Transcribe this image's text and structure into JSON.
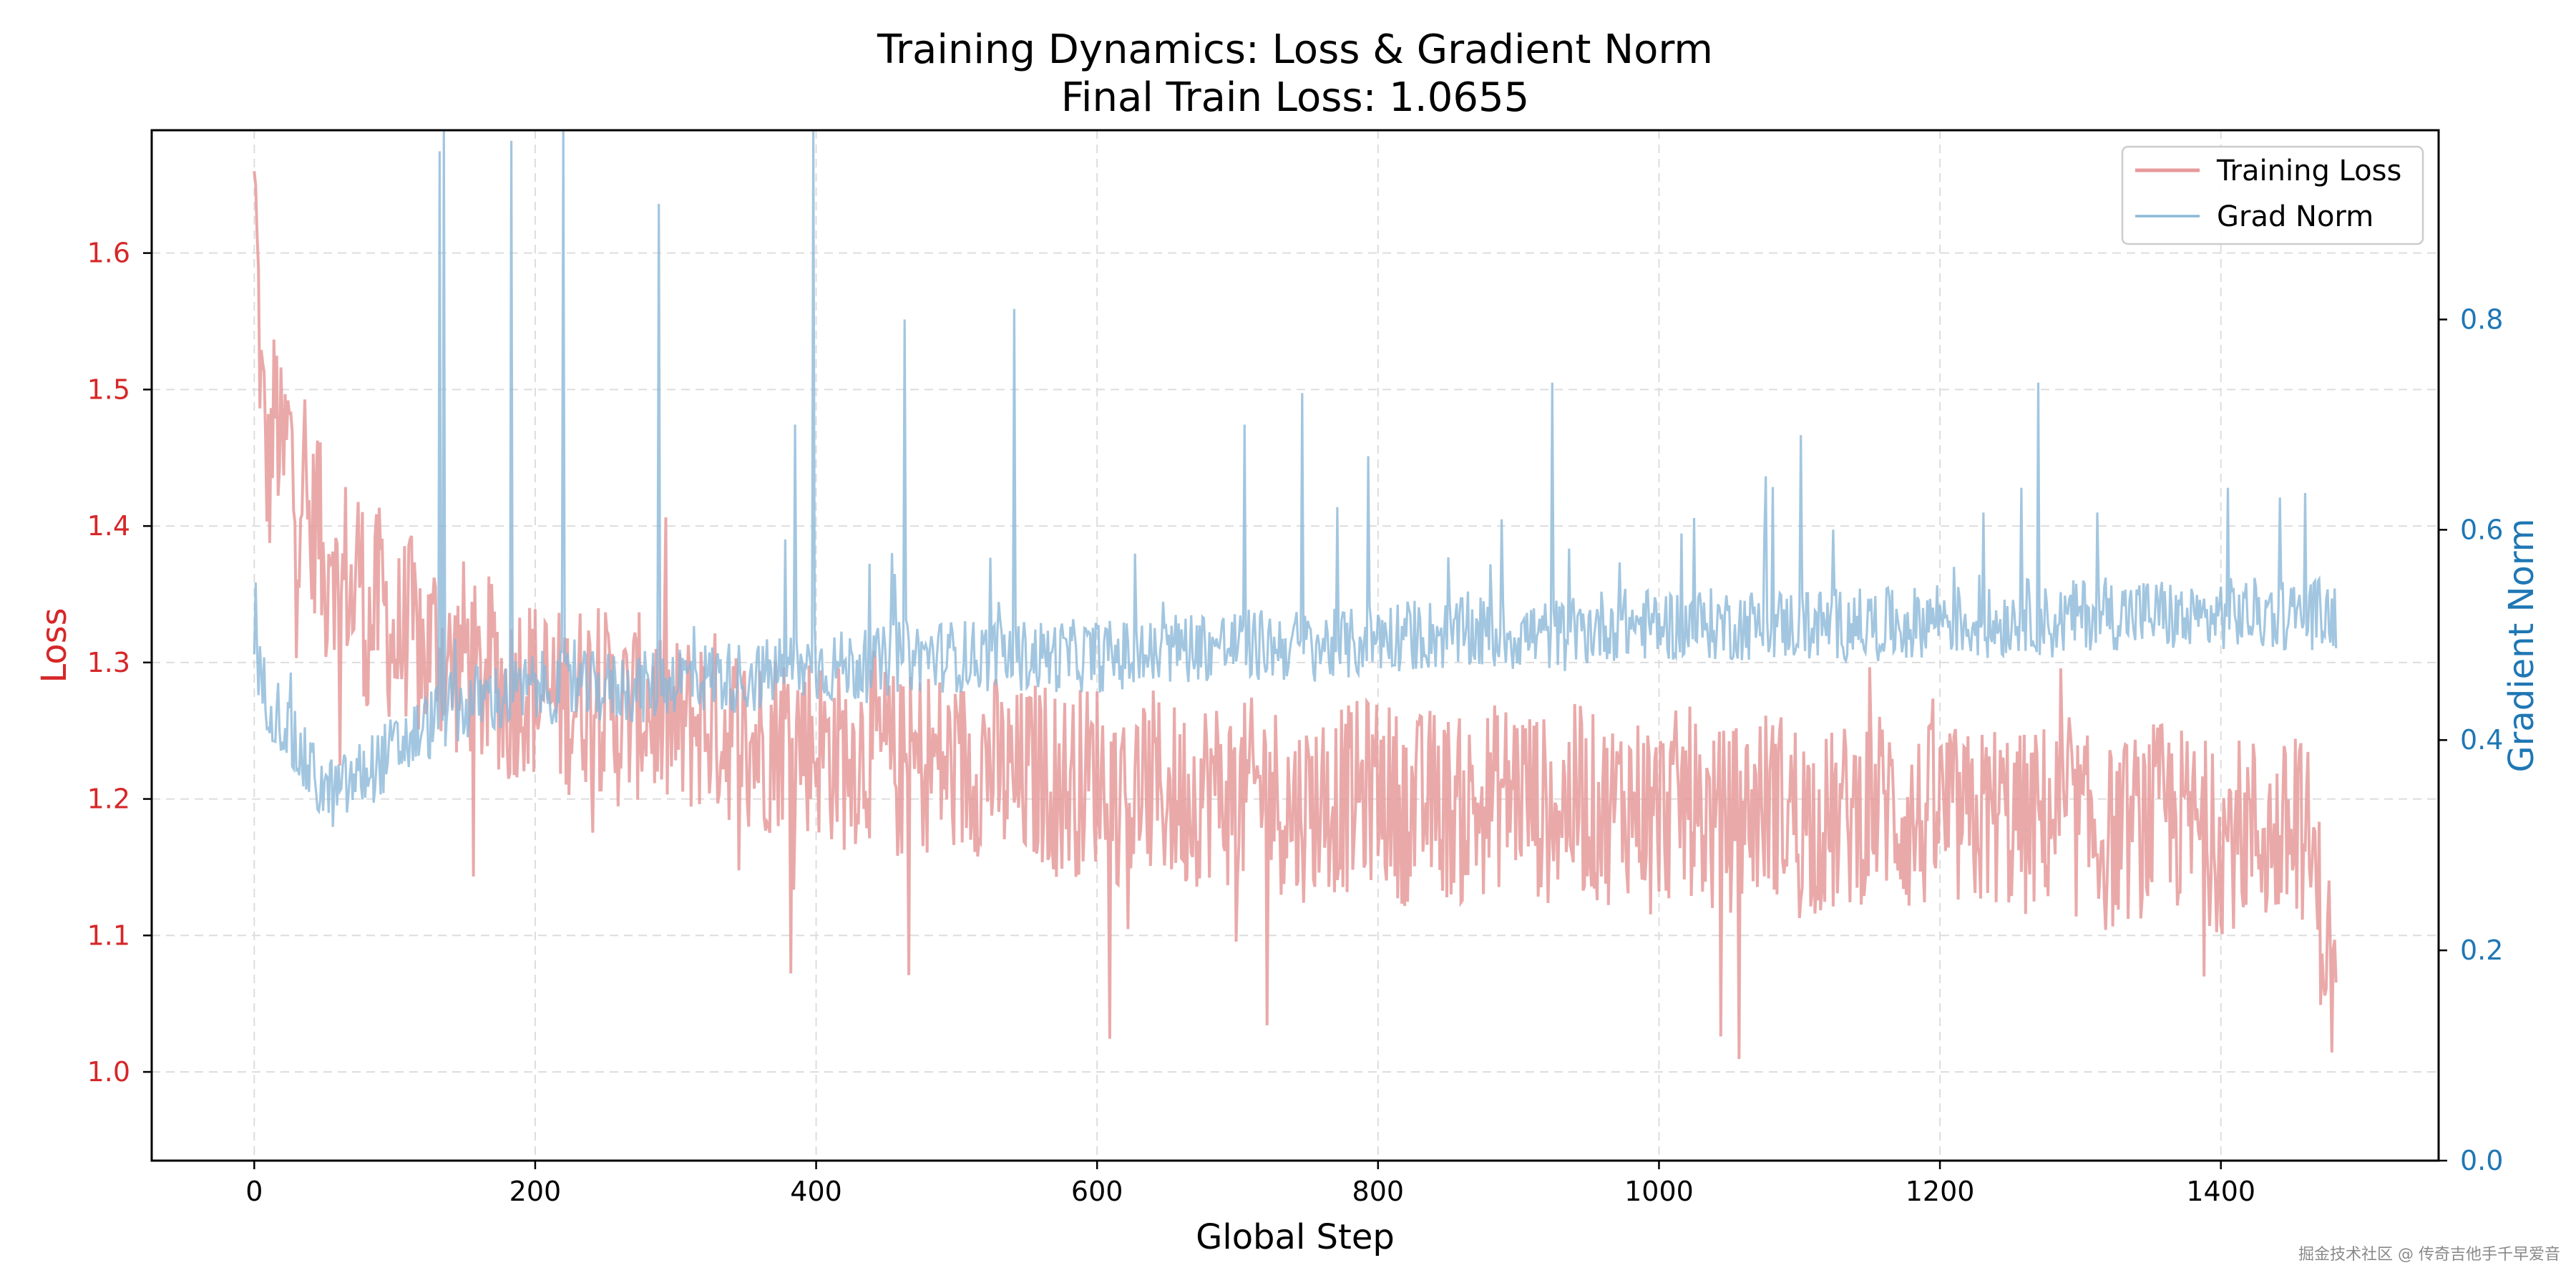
{
  "title": "Training Dynamics: Loss & Gradient Norm",
  "subtitle": "Final Train Loss: 1.0655",
  "watermark": "掘金技术社区 @ 传奇吉他手千早爱音",
  "chart_data": {
    "type": "line",
    "xlabel": "Global Step",
    "ylabel_left": "Loss",
    "ylabel_right": "Gradient Norm",
    "xlim": [
      -73,
      1555
    ],
    "ylim_left": [
      0.935,
      1.69
    ],
    "ylim_right": [
      0.0,
      0.98
    ],
    "x_ticks": [
      0,
      200,
      400,
      600,
      800,
      1000,
      1200,
      1400
    ],
    "y_ticks_left": [
      1.0,
      1.1,
      1.2,
      1.3,
      1.4,
      1.5,
      1.6
    ],
    "y_ticks_right": [
      0.0,
      0.2,
      0.4,
      0.6,
      0.8
    ],
    "grid": true,
    "legend_position": "top-right",
    "series": [
      {
        "name": "Training Loss",
        "axis": "left",
        "color": "#e69a9a",
        "x": [
          0,
          5,
          10,
          15,
          20,
          25,
          30,
          35,
          40,
          45,
          50,
          55,
          60,
          65,
          70,
          75,
          80,
          90,
          100,
          110,
          120,
          130,
          140,
          150,
          160,
          170,
          180,
          190,
          200,
          220,
          240,
          260,
          280,
          300,
          320,
          340,
          360,
          380,
          400,
          420,
          440,
          460,
          480,
          500,
          520,
          540,
          560,
          580,
          600,
          620,
          640,
          660,
          680,
          700,
          720,
          740,
          760,
          780,
          800,
          820,
          840,
          860,
          880,
          900,
          920,
          940,
          960,
          980,
          1000,
          1020,
          1040,
          1060,
          1080,
          1100,
          1120,
          1140,
          1160,
          1180,
          1200,
          1220,
          1240,
          1260,
          1280,
          1300,
          1320,
          1340,
          1360,
          1380,
          1400,
          1420,
          1440,
          1460,
          1480
        ],
        "y": [
          1.66,
          1.5,
          1.43,
          1.49,
          1.44,
          1.47,
          1.4,
          1.46,
          1.38,
          1.42,
          1.35,
          1.41,
          1.33,
          1.37,
          1.34,
          1.38,
          1.32,
          1.35,
          1.31,
          1.33,
          1.3,
          1.32,
          1.29,
          1.31,
          1.28,
          1.3,
          1.27,
          1.29,
          1.28,
          1.27,
          1.28,
          1.26,
          1.27,
          1.25,
          1.26,
          1.25,
          1.24,
          1.25,
          1.24,
          1.23,
          1.24,
          1.22,
          1.23,
          1.22,
          1.23,
          1.21,
          1.22,
          1.21,
          1.22,
          1.2,
          1.21,
          1.2,
          1.21,
          1.2,
          1.21,
          1.19,
          1.2,
          1.2,
          1.21,
          1.19,
          1.2,
          1.19,
          1.2,
          1.21,
          1.19,
          1.2,
          1.19,
          1.2,
          1.19,
          1.2,
          1.18,
          1.19,
          1.2,
          1.19,
          1.18,
          1.19,
          1.2,
          1.18,
          1.19,
          1.18,
          1.19,
          1.18,
          1.19,
          1.18,
          1.17,
          1.18,
          1.19,
          1.18,
          1.17,
          1.18,
          1.17,
          1.18,
          1.0655
        ],
        "noise": 0.07
      },
      {
        "name": "Grad Norm",
        "axis": "right",
        "color": "#8bb8d8",
        "x": [
          0,
          10,
          20,
          30,
          40,
          50,
          60,
          70,
          80,
          90,
          100,
          110,
          120,
          130,
          140,
          150,
          160,
          180,
          200,
          220,
          240,
          260,
          280,
          300,
          320,
          340,
          360,
          380,
          400,
          420,
          440,
          460,
          480,
          500,
          520,
          540,
          560,
          580,
          600,
          620,
          640,
          660,
          680,
          700,
          720,
          740,
          760,
          780,
          800,
          820,
          840,
          860,
          880,
          900,
          920,
          940,
          960,
          980,
          1000,
          1020,
          1040,
          1060,
          1080,
          1100,
          1120,
          1140,
          1160,
          1180,
          1200,
          1220,
          1240,
          1260,
          1280,
          1300,
          1320,
          1340,
          1360,
          1380,
          1400,
          1420,
          1440,
          1460,
          1480
        ],
        "y": [
          0.47,
          0.44,
          0.42,
          0.39,
          0.37,
          0.35,
          0.35,
          0.36,
          0.37,
          0.38,
          0.39,
          0.4,
          0.41,
          0.42,
          0.43,
          0.43,
          0.44,
          0.44,
          0.45,
          0.45,
          0.45,
          0.45,
          0.45,
          0.46,
          0.46,
          0.46,
          0.46,
          0.47,
          0.47,
          0.47,
          0.47,
          0.48,
          0.48,
          0.48,
          0.48,
          0.48,
          0.48,
          0.48,
          0.48,
          0.48,
          0.48,
          0.49,
          0.49,
          0.49,
          0.49,
          0.49,
          0.49,
          0.49,
          0.5,
          0.5,
          0.5,
          0.5,
          0.5,
          0.5,
          0.5,
          0.5,
          0.51,
          0.51,
          0.51,
          0.51,
          0.51,
          0.51,
          0.51,
          0.51,
          0.51,
          0.51,
          0.51,
          0.51,
          0.52,
          0.51,
          0.51,
          0.52,
          0.51,
          0.52,
          0.52,
          0.52,
          0.52,
          0.51,
          0.52,
          0.52,
          0.52,
          0.52,
          0.52
        ],
        "noise": 0.035,
        "spikes": [
          [
            132,
            0.96
          ],
          [
            135,
            0.98
          ],
          [
            183,
            0.97
          ],
          [
            220,
            0.98
          ],
          [
            288,
            0.91
          ],
          [
            385,
            0.7
          ],
          [
            398,
            0.98
          ],
          [
            463,
            0.8
          ],
          [
            541,
            0.81
          ],
          [
            705,
            0.7
          ],
          [
            746,
            0.73
          ],
          [
            793,
            0.67
          ],
          [
            924,
            0.74
          ],
          [
            1101,
            0.69
          ],
          [
            1270,
            0.74
          ],
          [
            1258,
            0.64
          ],
          [
            1405,
            0.64
          ]
        ]
      }
    ]
  }
}
